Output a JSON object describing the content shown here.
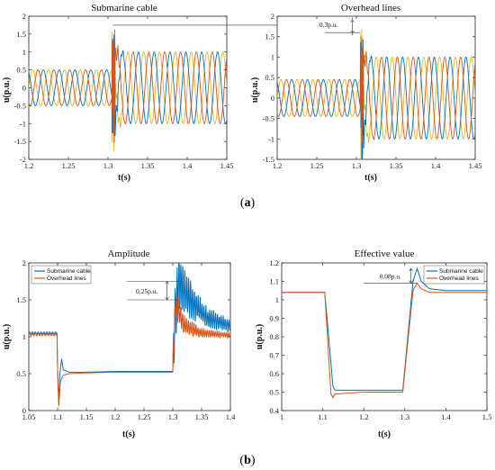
{
  "figure": {
    "label_a": "a",
    "label_b": "b"
  },
  "colors": {
    "blue": "#0072BD",
    "orange": "#D95319",
    "yellow": "#EDB120"
  },
  "chart_data": [
    {
      "id": "top-left",
      "type": "line",
      "title": "Submarine cable",
      "xlabel": "t(s)",
      "ylabel": "u(p.u.)",
      "xlim": [
        1.2,
        1.45
      ],
      "ylim": [
        -2,
        2
      ],
      "xticks": [
        "1.2",
        "1.25",
        "1.3",
        "1.35",
        "1.4",
        "1.45"
      ],
      "yticks": [
        "-2",
        "-1.5",
        "-1",
        "-0.5",
        "0",
        "0.5",
        "1",
        "1.5",
        "2"
      ],
      "grid": false,
      "description_of_data": "three-phase sinusoidal voltages",
      "series": [
        {
          "color": "yellow",
          "phase_deg": 0
        },
        {
          "color": "blue",
          "phase_deg": 120
        },
        {
          "color": "orange",
          "phase_deg": 240
        }
      ],
      "amplitude_before": 0.5,
      "amplitude_after": 1.0,
      "fault_time": 1.305,
      "transient_peak": 1.75,
      "frequency_hz": 50
    },
    {
      "id": "top-right",
      "type": "line",
      "title": "Overhead lines",
      "xlabel": "t(s)",
      "ylabel": "u(p.u.)",
      "xlim": [
        1.2,
        1.45
      ],
      "ylim": [
        -1.5,
        2
      ],
      "xticks": [
        "1.2",
        "1.25",
        "1.3",
        "1.35",
        "1.4",
        "1.45"
      ],
      "yticks": [
        "-1.5",
        "-1",
        "-0.5",
        "0",
        "0.5",
        "1",
        "1.5",
        "2"
      ],
      "grid": false,
      "series": [
        {
          "color": "yellow",
          "phase_deg": 0
        },
        {
          "color": "blue",
          "phase_deg": 120
        },
        {
          "color": "orange",
          "phase_deg": 240
        }
      ],
      "amplitude_before": 0.45,
      "amplitude_after": 1.0,
      "fault_time": 1.305,
      "transient_peak": 1.62,
      "frequency_hz": 50,
      "annotation": "0.3p.u."
    },
    {
      "id": "bottom-left",
      "type": "line",
      "title": "Amplitude",
      "xlabel": "t(s)",
      "ylabel": "u(p.u.)",
      "xlim": [
        1.05,
        1.4
      ],
      "ylim": [
        0,
        2
      ],
      "xticks": [
        "1.05",
        "1.1",
        "1.15",
        "1.2",
        "1.25",
        "1.3",
        "1.35",
        "1.4"
      ],
      "yticks": [
        "0",
        "0.5",
        "1",
        "1.5",
        "2"
      ],
      "grid": false,
      "legend_position": "top-left",
      "annotation": "0.25p.u.",
      "series": [
        {
          "name": "Submarine cable",
          "color": "blue",
          "points": [
            [
              1.05,
              1.05
            ],
            [
              1.099,
              1.05
            ],
            [
              1.1,
              0.55
            ],
            [
              1.102,
              0.1
            ],
            [
              1.104,
              0.5
            ],
            [
              1.107,
              0.7
            ],
            [
              1.11,
              0.55
            ],
            [
              1.12,
              0.52
            ],
            [
              1.15,
              0.52
            ],
            [
              1.2,
              0.53
            ],
            [
              1.25,
              0.53
            ],
            [
              1.3,
              0.53
            ],
            [
              1.301,
              1.0
            ],
            [
              1.31,
              1.75
            ],
            [
              1.33,
              1.5
            ],
            [
              1.36,
              1.25
            ],
            [
              1.4,
              1.15
            ]
          ]
        },
        {
          "name": "Overhead lines",
          "color": "orange",
          "points": [
            [
              1.05,
              1.03
            ],
            [
              1.099,
              1.03
            ],
            [
              1.1,
              0.5
            ],
            [
              1.102,
              0.05
            ],
            [
              1.105,
              0.4
            ],
            [
              1.11,
              0.48
            ],
            [
              1.12,
              0.5
            ],
            [
              1.15,
              0.51
            ],
            [
              1.2,
              0.52
            ],
            [
              1.25,
              0.52
            ],
            [
              1.3,
              0.52
            ],
            [
              1.301,
              0.9
            ],
            [
              1.305,
              1.45
            ],
            [
              1.32,
              1.15
            ],
            [
              1.35,
              1.05
            ],
            [
              1.4,
              1.02
            ]
          ]
        }
      ]
    },
    {
      "id": "bottom-right",
      "type": "line",
      "title": "Effective value",
      "xlabel": "t(s)",
      "ylabel": "u(p.u.)",
      "xlim": [
        1,
        1.5
      ],
      "ylim": [
        0.4,
        1.2
      ],
      "xticks": [
        "1",
        "1.1",
        "1.2",
        "1.3",
        "1.4",
        "1.5"
      ],
      "yticks": [
        "0.4",
        "0.5",
        "0.6",
        "0.7",
        "0.8",
        "0.9",
        "1",
        "1.1",
        "1.2"
      ],
      "grid": false,
      "legend_position": "top-right",
      "annotation": "0.08p.u.",
      "series": [
        {
          "name": "Submarine cable",
          "color": "blue",
          "points": [
            [
              1.0,
              1.04
            ],
            [
              1.105,
              1.04
            ],
            [
              1.125,
              0.53
            ],
            [
              1.13,
              0.51
            ],
            [
              1.2,
              0.51
            ],
            [
              1.295,
              0.51
            ],
            [
              1.32,
              1.1
            ],
            [
              1.33,
              1.17
            ],
            [
              1.34,
              1.1
            ],
            [
              1.36,
              1.06
            ],
            [
              1.4,
              1.05
            ],
            [
              1.5,
              1.05
            ]
          ]
        },
        {
          "name": "Overhead lines",
          "color": "orange",
          "points": [
            [
              1.0,
              1.04
            ],
            [
              1.105,
              1.04
            ],
            [
              1.12,
              0.49
            ],
            [
              1.125,
              0.47
            ],
            [
              1.13,
              0.49
            ],
            [
              1.2,
              0.5
            ],
            [
              1.295,
              0.5
            ],
            [
              1.32,
              1.05
            ],
            [
              1.33,
              1.09
            ],
            [
              1.34,
              1.06
            ],
            [
              1.36,
              1.04
            ],
            [
              1.4,
              1.04
            ],
            [
              1.5,
              1.04
            ]
          ]
        }
      ]
    }
  ]
}
